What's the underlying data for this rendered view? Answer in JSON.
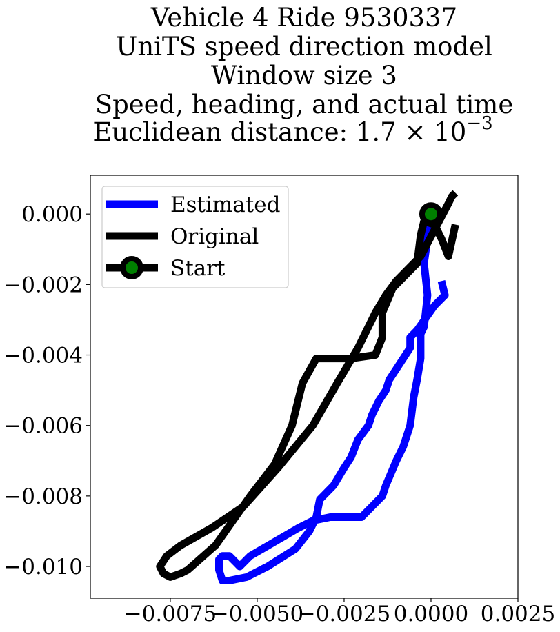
{
  "chart_data": {
    "type": "line",
    "title_lines": [
      "Vehicle 4 Ride 9530337",
      "UniTS speed direction model",
      "Window size 3",
      "Speed, heading, and actual time",
      "Euclidean distance: 1.7 × 10",
      "−3"
    ],
    "xlim": [
      -0.0098,
      0.0025
    ],
    "ylim": [
      -0.0109,
      0.0011
    ],
    "xticks": [
      {
        "value": -0.0075,
        "label": "−0.0075"
      },
      {
        "value": -0.005,
        "label": "−0.0050"
      },
      {
        "value": -0.0025,
        "label": "−0.0025"
      },
      {
        "value": 0.0,
        "label": "0.0000"
      },
      {
        "value": 0.0025,
        "label": "0.0025"
      }
    ],
    "yticks": [
      {
        "value": 0.0,
        "label": "0.000"
      },
      {
        "value": -0.002,
        "label": "−0.002"
      },
      {
        "value": -0.004,
        "label": "−0.004"
      },
      {
        "value": -0.006,
        "label": "−0.006"
      },
      {
        "value": -0.008,
        "label": "−0.008"
      },
      {
        "value": -0.01,
        "label": "−0.010"
      }
    ],
    "legend_position": "upper-left",
    "grid": false,
    "series": [
      {
        "name": "Estimated",
        "color": "#0000ff",
        "x": [
          0.0003,
          0.0004,
          0.0001,
          -0.0004,
          -0.0006,
          -0.0006,
          -0.001,
          -0.0012,
          -0.0013,
          -0.0015,
          -0.0017,
          -0.0018,
          -0.0021,
          -0.0023,
          -0.0025,
          -0.0028,
          -0.0032,
          -0.0033,
          -0.0035,
          -0.0039,
          -0.0047,
          -0.0053,
          -0.0058,
          -0.006,
          -0.0061,
          -0.0061,
          -0.006,
          -0.0058,
          -0.0056,
          -0.0055,
          -0.0052,
          -0.0045,
          -0.0038,
          -0.0034,
          -0.0029,
          -0.002,
          -0.0017,
          -0.0014,
          -0.0013,
          -0.001,
          -0.0008,
          -0.0007,
          -0.0006,
          -0.0005,
          -0.0004,
          -0.0003,
          -0.0003,
          -0.0002,
          -0.0001,
          -0.0002,
          -0.0001,
          -0.0001,
          0.0
        ],
        "y": [
          -0.0019,
          -0.0023,
          -0.0026,
          -0.0033,
          -0.0035,
          -0.0038,
          -0.0044,
          -0.0047,
          -0.005,
          -0.0053,
          -0.0057,
          -0.006,
          -0.0064,
          -0.0069,
          -0.0072,
          -0.0077,
          -0.0081,
          -0.0086,
          -0.009,
          -0.0095,
          -0.01,
          -0.0103,
          -0.0104,
          -0.0104,
          -0.0101,
          -0.0098,
          -0.0097,
          -0.0097,
          -0.0099,
          -0.01,
          -0.0097,
          -0.0093,
          -0.0089,
          -0.0087,
          -0.0086,
          -0.0086,
          -0.0083,
          -0.008,
          -0.0077,
          -0.007,
          -0.0066,
          -0.0063,
          -0.006,
          -0.0052,
          -0.0047,
          -0.0041,
          -0.0034,
          -0.0032,
          -0.0023,
          -0.0014,
          -0.0007,
          -0.0004,
          -0.0002
        ]
      },
      {
        "name": "Original",
        "color": "#000000",
        "x": [
          0.0007,
          0.0006,
          0.0005,
          -0.0003,
          -0.0005,
          -0.001,
          -0.0013,
          -0.0016,
          -0.0021,
          -0.0027,
          -0.0034,
          -0.0044,
          -0.0054,
          -0.0063,
          -0.0072,
          -0.0076,
          -0.0078,
          -0.0077,
          -0.0075,
          -0.0072,
          -0.007,
          -0.0062,
          -0.0052,
          -0.0045,
          -0.004,
          -0.0037,
          -0.0033,
          -0.0023,
          -0.0016,
          -0.0014,
          -0.0014,
          -0.0011,
          -0.0004,
          -0.0003,
          -0.0002,
          0.0001,
          0.0003,
          0.0005,
          0.0007
        ],
        "y": [
          0.0006,
          0.0005,
          0.0003,
          -0.0012,
          -0.0014,
          -0.0019,
          -0.0023,
          -0.0028,
          -0.0038,
          -0.0048,
          -0.006,
          -0.0072,
          -0.0083,
          -0.0089,
          -0.0094,
          -0.0097,
          -0.01,
          -0.0102,
          -0.0103,
          -0.0102,
          -0.0101,
          -0.0094,
          -0.008,
          -0.0071,
          -0.006,
          -0.0048,
          -0.0041,
          -0.0041,
          -0.004,
          -0.0035,
          -0.0028,
          -0.0021,
          -0.0014,
          -0.0006,
          -0.0002,
          -0.0003,
          -0.0007,
          -0.0012,
          -0.0003
        ]
      }
    ],
    "start_point": {
      "name": "Start",
      "x": 0.0,
      "y": 0.0,
      "fill": "#008000",
      "edge": "#000000"
    }
  }
}
